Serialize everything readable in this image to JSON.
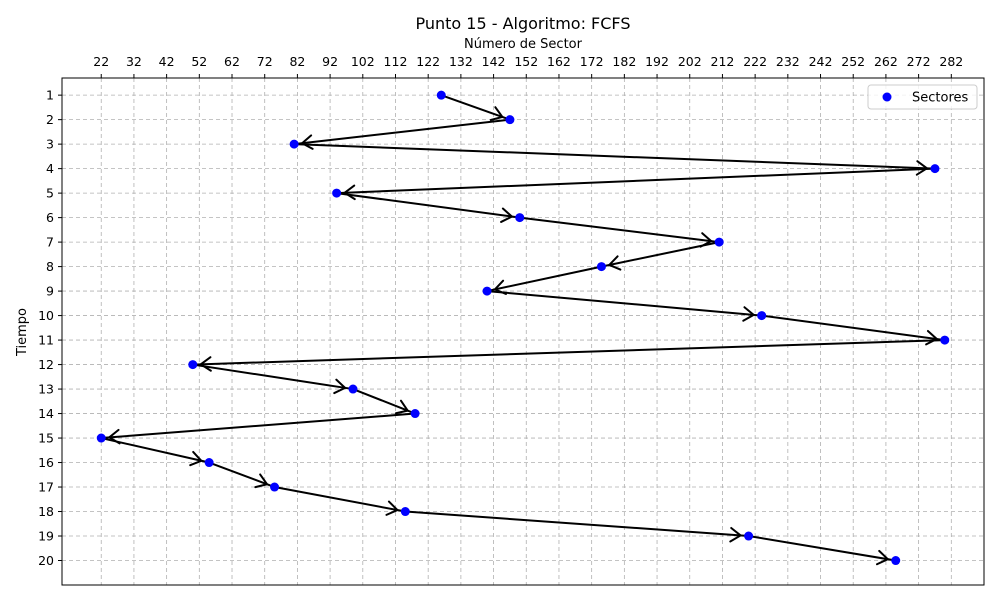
{
  "chart_data": {
    "type": "scatter",
    "title": "Punto 15 - Algoritmo: FCFS",
    "xlabel": "Número de Sector",
    "ylabel": "Tiempo",
    "x_axis_position": "top",
    "y_axis_inverted": true,
    "xlim": [
      10,
      292
    ],
    "ylim": [
      21,
      0.3
    ],
    "x_ticks": [
      22,
      32,
      42,
      52,
      62,
      72,
      82,
      92,
      102,
      112,
      122,
      132,
      142,
      152,
      162,
      172,
      182,
      192,
      202,
      212,
      222,
      232,
      242,
      252,
      262,
      272,
      282
    ],
    "y_ticks": [
      1,
      2,
      3,
      4,
      5,
      6,
      7,
      8,
      9,
      10,
      11,
      12,
      13,
      14,
      15,
      16,
      17,
      18,
      19,
      20
    ],
    "grid": true,
    "legend": {
      "placement": "top-right",
      "entries": [
        "Sectores"
      ]
    },
    "series": [
      {
        "name": "Sectores",
        "color": "#0000ff",
        "points": [
          {
            "x": 126,
            "y": 1
          },
          {
            "x": 147,
            "y": 2
          },
          {
            "x": 81,
            "y": 3
          },
          {
            "x": 277,
            "y": 4
          },
          {
            "x": 94,
            "y": 5
          },
          {
            "x": 150,
            "y": 6
          },
          {
            "x": 211,
            "y": 7
          },
          {
            "x": 175,
            "y": 8
          },
          {
            "x": 140,
            "y": 9
          },
          {
            "x": 224,
            "y": 10
          },
          {
            "x": 280,
            "y": 11
          },
          {
            "x": 50,
            "y": 12
          },
          {
            "x": 99,
            "y": 13
          },
          {
            "x": 118,
            "y": 14
          },
          {
            "x": 22,
            "y": 15
          },
          {
            "x": 55,
            "y": 16
          },
          {
            "x": 75,
            "y": 17
          },
          {
            "x": 115,
            "y": 18
          },
          {
            "x": 220,
            "y": 19
          },
          {
            "x": 265,
            "y": 20
          }
        ]
      }
    ],
    "arrows": {
      "connect": "sequential",
      "color": "#000000"
    }
  }
}
